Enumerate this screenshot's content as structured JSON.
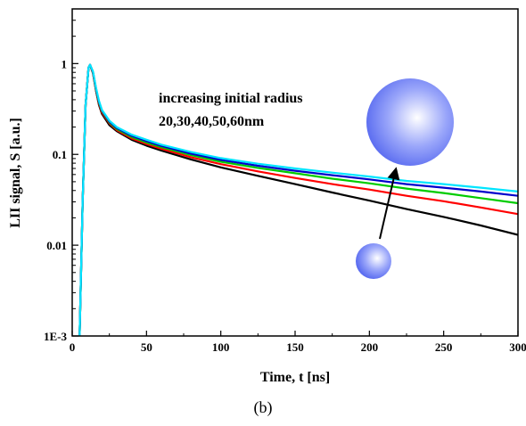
{
  "chart_data": {
    "type": "line",
    "xlabel": "Time, t [ns]",
    "ylabel": "LII signal, S [a.u.]",
    "xlim": [
      0,
      300
    ],
    "ylim": [
      0.001,
      4
    ],
    "yscale": "log",
    "grid": false,
    "x_ticks": [
      0,
      50,
      100,
      150,
      200,
      250,
      300
    ],
    "x_tick_labels": [
      "0",
      "50",
      "100",
      "150",
      "200",
      "250",
      "300"
    ],
    "y_ticks": [
      0.001,
      0.01,
      0.1,
      1
    ],
    "y_tick_labels": [
      "1E-3",
      "0.01",
      "0.1",
      "1"
    ],
    "annotation_lines": [
      "increasing initial radius",
      "20,30,40,50,60nm"
    ],
    "panel_label": "(b)",
    "series": [
      {
        "color": "#000000",
        "x": [
          5,
          7,
          9,
          11,
          12,
          14,
          16,
          18,
          20,
          25,
          30,
          40,
          50,
          60,
          80,
          100,
          125,
          150,
          175,
          200,
          225,
          250,
          275,
          300
        ],
        "y": [
          0.001,
          0.03,
          0.35,
          0.9,
          0.97,
          0.78,
          0.5,
          0.35,
          0.28,
          0.21,
          0.18,
          0.145,
          0.125,
          0.11,
          0.088,
          0.072,
          0.058,
          0.047,
          0.038,
          0.031,
          0.025,
          0.0205,
          0.0165,
          0.013
        ]
      },
      {
        "color": "#ff0000",
        "x": [
          5,
          7,
          9,
          11,
          12,
          14,
          16,
          18,
          20,
          25,
          30,
          40,
          50,
          60,
          80,
          100,
          125,
          150,
          175,
          200,
          225,
          250,
          275,
          300
        ],
        "y": [
          0.001,
          0.03,
          0.35,
          0.9,
          0.97,
          0.79,
          0.51,
          0.36,
          0.29,
          0.22,
          0.185,
          0.15,
          0.13,
          0.115,
          0.093,
          0.078,
          0.065,
          0.055,
          0.047,
          0.041,
          0.035,
          0.0305,
          0.026,
          0.022
        ]
      },
      {
        "color": "#00cc00",
        "x": [
          5,
          7,
          9,
          11,
          12,
          14,
          16,
          18,
          20,
          25,
          30,
          40,
          50,
          60,
          80,
          100,
          125,
          150,
          175,
          200,
          225,
          250,
          275,
          300
        ],
        "y": [
          0.001,
          0.03,
          0.35,
          0.9,
          0.97,
          0.8,
          0.52,
          0.37,
          0.3,
          0.225,
          0.19,
          0.155,
          0.135,
          0.12,
          0.098,
          0.083,
          0.071,
          0.062,
          0.054,
          0.048,
          0.042,
          0.0375,
          0.033,
          0.029
        ]
      },
      {
        "color": "#0000cc",
        "x": [
          5,
          7,
          9,
          11,
          12,
          14,
          16,
          18,
          20,
          25,
          30,
          40,
          50,
          60,
          80,
          100,
          125,
          150,
          175,
          200,
          225,
          250,
          275,
          300
        ],
        "y": [
          0.001,
          0.03,
          0.35,
          0.9,
          0.97,
          0.81,
          0.53,
          0.38,
          0.305,
          0.23,
          0.195,
          0.16,
          0.14,
          0.124,
          0.102,
          0.087,
          0.075,
          0.066,
          0.059,
          0.053,
          0.047,
          0.043,
          0.039,
          0.035
        ]
      },
      {
        "color": "#00e5ff",
        "x": [
          5,
          7,
          9,
          11,
          12,
          14,
          16,
          18,
          20,
          25,
          30,
          40,
          50,
          60,
          80,
          100,
          125,
          150,
          175,
          200,
          225,
          250,
          275,
          300
        ],
        "y": [
          0.001,
          0.03,
          0.35,
          0.9,
          0.97,
          0.82,
          0.54,
          0.39,
          0.31,
          0.235,
          0.2,
          0.165,
          0.145,
          0.128,
          0.106,
          0.091,
          0.079,
          0.07,
          0.063,
          0.057,
          0.051,
          0.047,
          0.043,
          0.039
        ]
      }
    ]
  },
  "decor": {
    "sphere_color": "#5a6cf0",
    "arrow_color": "#000000"
  }
}
